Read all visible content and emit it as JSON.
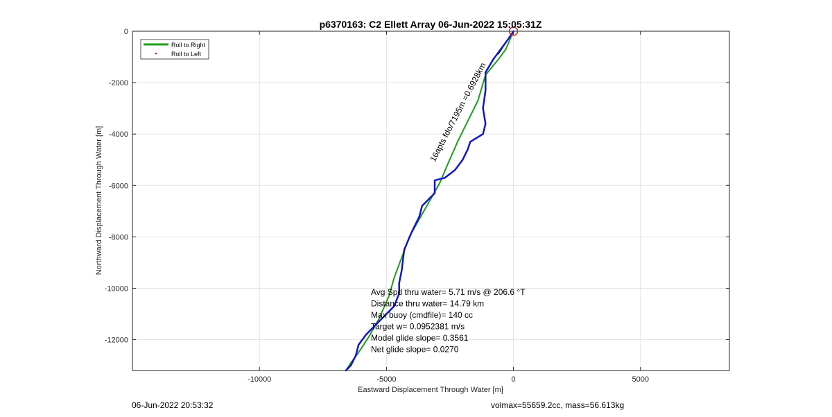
{
  "chart_data": {
    "type": "line",
    "title": "p6370163: C2 Ellett Array 06-Jun-2022 15:05:31Z",
    "xlabel": "Eastward Displacement Through Water [m]",
    "ylabel": "Northward Displacement Through Water [m]",
    "xlim": [
      -15000,
      8500
    ],
    "ylim": [
      -13200,
      0
    ],
    "xticks": [
      -10000,
      -5000,
      0,
      5000
    ],
    "yticks": [
      0,
      -2000,
      -4000,
      -6000,
      -8000,
      -10000,
      -12000
    ],
    "xtick_labels": [
      "-10000",
      "-5000",
      "0",
      "5000"
    ],
    "ytick_labels": [
      "0",
      "-2000",
      "-4000",
      "-6000",
      "-8000",
      "-10000",
      "-12000"
    ],
    "grid": true,
    "legend_position": "top-left",
    "legend": [
      "Roll to Right",
      "Roll to Left"
    ],
    "series": [
      {
        "name": "Roll to Right",
        "color": "#1a9e1a",
        "x": [
          0,
          -300,
          -600,
          -1100,
          -1400,
          -1800,
          -2200,
          -2600,
          -2900,
          -3300,
          -3700,
          -4100,
          -4400,
          -4700,
          -4900,
          -5300,
          -5700,
          -6100,
          -6400,
          -6600
        ],
        "y": [
          0,
          -700,
          -1100,
          -1700,
          -2700,
          -3500,
          -4300,
          -5200,
          -5900,
          -6600,
          -7300,
          -8000,
          -8800,
          -9600,
          -10300,
          -11200,
          -11900,
          -12500,
          -12900,
          -13200
        ]
      },
      {
        "name": "Roll to Left",
        "color": "#1414c8",
        "x": [
          0,
          -200,
          -500,
          -800,
          -1100,
          -1100,
          -1200,
          -1100,
          -1200,
          -1700,
          -1800,
          -2000,
          -2300,
          -2700,
          -3100,
          -3100,
          -3600,
          -3700,
          -4000,
          -4300,
          -4400,
          -4500,
          -4500,
          -4700,
          -5000,
          -5400,
          -5800,
          -6100,
          -6200,
          -6400,
          -6600
        ],
        "y": [
          0,
          -300,
          -700,
          -1100,
          -1600,
          -2300,
          -3000,
          -3600,
          -4000,
          -4300,
          -4600,
          -5000,
          -5400,
          -5700,
          -5800,
          -6300,
          -6800,
          -7200,
          -7800,
          -8500,
          -9300,
          -9800,
          -10200,
          -10700,
          -11000,
          -11400,
          -11800,
          -12200,
          -12600,
          -13000,
          -13200
        ]
      }
    ],
    "marker": {
      "x": 0,
      "y": 0,
      "color": "#d42020"
    },
    "segment_annotation": {
      "text": "16apts fdo/7195m =0.6928km",
      "x_start": -3100,
      "y_start": -5100,
      "x_end": -450,
      "y_end": -100
    },
    "stats": [
      "Avg Spd thru water=  5.71 m/s @ 206.6 °T",
      "Distance thru water= 14.79 km",
      "Max buoy (cmdfile)= 140 cc",
      "Target w= 0.0952381 m/s",
      "Model glide slope= 0.3561",
      "Net glide slope= 0.0270"
    ]
  },
  "footer": {
    "left": "06-Jun-2022 20:53:32",
    "right": "volmax=55659.2cc, mass=56.613kg"
  }
}
